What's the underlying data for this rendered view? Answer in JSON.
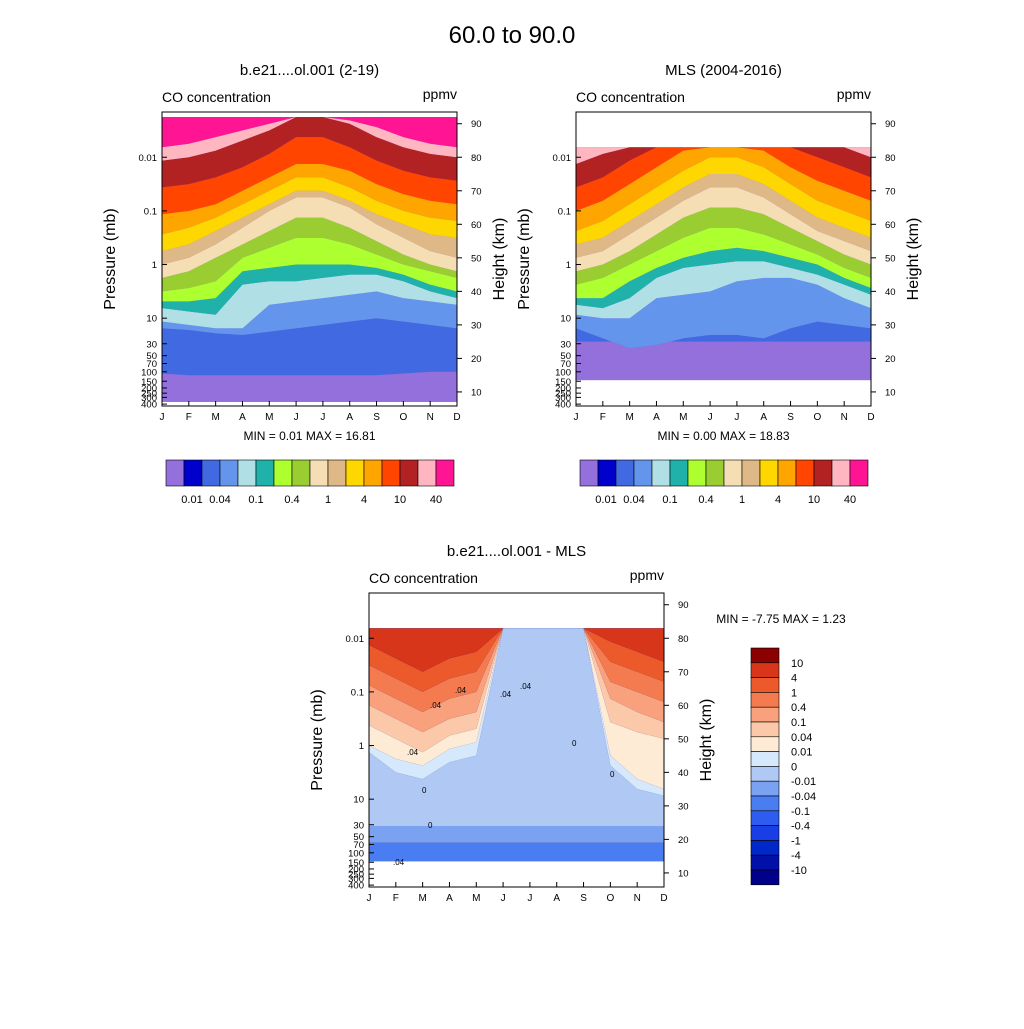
{
  "page_title": "60.0 to  90.0",
  "months": [
    "J",
    "F",
    "M",
    "A",
    "M",
    "J",
    "J",
    "A",
    "S",
    "O",
    "N",
    "D"
  ],
  "pressure_ticks": [
    "0.01",
    "0.1",
    "1",
    "10",
    "30",
    "50",
    "70",
    "100",
    "150",
    "200",
    "250",
    "300",
    "400"
  ],
  "pressure_values": [
    0.01,
    0.1,
    1,
    10,
    30,
    50,
    70,
    100,
    150,
    200,
    250,
    300,
    400
  ],
  "height_ticks": [
    "90",
    "80",
    "70",
    "60",
    "50",
    "40",
    "30",
    "20",
    "10"
  ],
  "height_values": [
    90,
    80,
    70,
    60,
    50,
    40,
    30,
    20,
    10
  ],
  "y_label_left": "Pressure (mb)",
  "y_label_right": "Height (km)",
  "variable_label": "CO concentration",
  "units_label": "ppmv",
  "co_levels": [
    0.01,
    0.02,
    0.04,
    0.07,
    0.1,
    0.2,
    0.4,
    0.7,
    1,
    2,
    4,
    7,
    10,
    20,
    40
  ],
  "co_colorbar_labels": [
    "0.01",
    "0.04",
    "0.1",
    "0.4",
    "1",
    "4",
    "10",
    "40"
  ],
  "co_colors": [
    "#9370db",
    "#0000cd",
    "#4169e1",
    "#6495ed",
    "#b0e0e6",
    "#20b2aa",
    "#adff2f",
    "#9acd32",
    "#f5deb3",
    "#deb887",
    "#ffd700",
    "#ffa500",
    "#ff4500",
    "#b22222",
    "#ffb6c1",
    "#ff1493"
  ],
  "diff_levels": [
    -10,
    -4,
    -1,
    -0.4,
    -0.1,
    -0.04,
    -0.01,
    0,
    0.01,
    0.04,
    0.1,
    0.4,
    1,
    4,
    10
  ],
  "diff_colorbar_labels": [
    "10",
    "4",
    "1",
    "0.4",
    "0.1",
    "0.04",
    "0.01",
    "0",
    "-0.01",
    "-0.04",
    "-0.1",
    "-0.4",
    "-1",
    "-4",
    "-10"
  ],
  "diff_colors": [
    "#00008b",
    "#0010a8",
    "#0028c8",
    "#1a3ee6",
    "#2e5cf0",
    "#4a7cf2",
    "#7ba2f0",
    "#b0c8f4",
    "#d6e8fc",
    "#fdebd6",
    "#fcc8aa",
    "#f9a07c",
    "#f47a4f",
    "#ec5a2c",
    "#d8361a",
    "#8b0000"
  ],
  "chart_data": [
    {
      "type": "heatmap",
      "title": "b.e21....ol.001 (2-19)",
      "subtitle_left": "CO concentration",
      "subtitle_right": "ppmv",
      "x": [
        "J",
        "F",
        "M",
        "A",
        "M",
        "J",
        "J",
        "A",
        "S",
        "O",
        "N",
        "D"
      ],
      "ylabel": "Pressure (mb)",
      "ylabel_right": "Height (km)",
      "ylim": [
        400,
        0.0032
      ],
      "y_scale": "log",
      "stats": "MIN =   0.01  MAX =  16.81",
      "min": 0.01,
      "max": 16.81,
      "data_top_km": 92,
      "data_bottom_km": 7,
      "layer_boundary_heights_km": [
        [
          15.5,
          15,
          15,
          15,
          15,
          15,
          15,
          15,
          15,
          15.5,
          16,
          16
        ],
        [
          15.5,
          15,
          15,
          15,
          15,
          15,
          15,
          15,
          15,
          15.5,
          16,
          16
        ],
        [
          29,
          28.5,
          27.5,
          27,
          28,
          29,
          30,
          31,
          32,
          31,
          30,
          29
        ],
        [
          31,
          30,
          29,
          29,
          36,
          37,
          38,
          39,
          40,
          38,
          37,
          36
        ],
        [
          35,
          34,
          33,
          42,
          43,
          43,
          44,
          45,
          45,
          43,
          40,
          38
        ],
        [
          37,
          37,
          38,
          46,
          47,
          48,
          48,
          48,
          47,
          45,
          42,
          40
        ],
        [
          40,
          41,
          43,
          50,
          53,
          56,
          56,
          54,
          51,
          48,
          46,
          44
        ],
        [
          44,
          46,
          50,
          54,
          58,
          62,
          62,
          59,
          55,
          51,
          48,
          46
        ],
        [
          48,
          50,
          54,
          59,
          64,
          68,
          68,
          65,
          60,
          56,
          52,
          50
        ],
        [
          52,
          54,
          58,
          62,
          66,
          70,
          70,
          67,
          63,
          60,
          57,
          56
        ],
        [
          57,
          59,
          62,
          66,
          70,
          74,
          74,
          71,
          67,
          64,
          62,
          61
        ],
        [
          63,
          64,
          66,
          70,
          74,
          78,
          78,
          76,
          72,
          69,
          67,
          66
        ],
        [
          71,
          72,
          74,
          77,
          81,
          86,
          86,
          83,
          79,
          76,
          74,
          73
        ],
        [
          79,
          80,
          82,
          85,
          88,
          92,
          92,
          90,
          86,
          83,
          81,
          80
        ],
        [
          83,
          84,
          86,
          88,
          90,
          92,
          92,
          91,
          89,
          86,
          84,
          83
        ]
      ]
    },
    {
      "type": "heatmap",
      "title": "MLS (2004-2016)",
      "subtitle_left": "CO concentration",
      "subtitle_right": "ppmv",
      "x": [
        "J",
        "F",
        "M",
        "A",
        "M",
        "J",
        "J",
        "A",
        "S",
        "O",
        "N",
        "D"
      ],
      "ylabel": "Pressure (mb)",
      "ylabel_right": "Height (km)",
      "ylim": [
        400,
        0.0032
      ],
      "y_scale": "log",
      "stats": "MIN =   0.00  MAX =  18.83",
      "min": 0.0,
      "max": 18.83,
      "data_top_km": 83,
      "data_bottom_km": 13.5,
      "layer_boundary_heights_km": [
        [
          25,
          25,
          25,
          25,
          25,
          25,
          25,
          25,
          25,
          25,
          25,
          25
        ],
        [
          25,
          25,
          25,
          25,
          25,
          25,
          25,
          25,
          25,
          25,
          25,
          25
        ],
        [
          29,
          26,
          23,
          24,
          26,
          27,
          27,
          26,
          29,
          31,
          30,
          29
        ],
        [
          33,
          32,
          32,
          38,
          39,
          40,
          43,
          44,
          44,
          42,
          38,
          35
        ],
        [
          36,
          35,
          38,
          44,
          47,
          48,
          49,
          49,
          47,
          45,
          42,
          39
        ],
        [
          38,
          38,
          43,
          47,
          50,
          52,
          53,
          52,
          50,
          48,
          44,
          41
        ],
        [
          42,
          44,
          48,
          52,
          56,
          59,
          59,
          57,
          54,
          51,
          47,
          44
        ],
        [
          46,
          48,
          52,
          57,
          62,
          65,
          65,
          63,
          59,
          55,
          51,
          48
        ],
        [
          50,
          52,
          57,
          62,
          67,
          71,
          71,
          68,
          63,
          58,
          55,
          52
        ],
        [
          54,
          56,
          61,
          66,
          71,
          75,
          75,
          72,
          67,
          62,
          59,
          56
        ],
        [
          58,
          61,
          66,
          71,
          76,
          80,
          80,
          77,
          72,
          67,
          64,
          61
        ],
        [
          64,
          67,
          72,
          77,
          82,
          86,
          86,
          82,
          77,
          73,
          70,
          67
        ],
        [
          71,
          74,
          79,
          84,
          88,
          92,
          92,
          88,
          84,
          80,
          77,
          74
        ],
        [
          78,
          81,
          86,
          90,
          92,
          92,
          92,
          92,
          90,
          87,
          83,
          80
        ],
        [
          86,
          88,
          92,
          92,
          92,
          92,
          92,
          92,
          92,
          92,
          90,
          87
        ]
      ]
    },
    {
      "type": "heatmap",
      "title": "b.e21....ol.001 - MLS",
      "subtitle_left": "CO concentration",
      "subtitle_right": "ppmv",
      "x": [
        "J",
        "F",
        "M",
        "A",
        "M",
        "J",
        "J",
        "A",
        "S",
        "O",
        "N",
        "D"
      ],
      "ylabel": "Pressure (mb)",
      "ylabel_right": "Height (km)",
      "ylim": [
        400,
        0.0032
      ],
      "y_scale": "log",
      "stats": "MIN =  -7.75  MAX =   1.23",
      "min": -7.75,
      "max": 1.23,
      "data_top_km": 83,
      "data_bottom_km": 13.5,
      "contour_labels": [
        ".04",
        ".04",
        ".04",
        ".04",
        ".04",
        "0",
        "0",
        "0",
        "0",
        ".04"
      ],
      "layer_boundary_heights_km": [
        [
          13.5,
          13.5,
          13.5,
          13.5,
          13.5,
          13.5,
          13.5,
          13.5,
          13.5,
          13.5,
          13.5,
          13.5
        ],
        [
          13.5,
          13.5,
          13.5,
          13.5,
          13.5,
          13.5,
          13.5,
          13.5,
          13.5,
          13.5,
          13.5,
          13.5
        ],
        [
          13.5,
          13.5,
          13.5,
          13.5,
          13.5,
          13.5,
          13.5,
          13.5,
          13.5,
          13.5,
          13.5,
          13.5
        ],
        [
          13.5,
          13.5,
          13.5,
          13.5,
          13.5,
          13.5,
          13.5,
          13.5,
          13.5,
          13.5,
          13.5,
          13.5
        ],
        [
          13.5,
          13.5,
          13.5,
          13.5,
          13.5,
          13.5,
          13.5,
          13.5,
          13.5,
          13.5,
          13.5,
          13.5
        ],
        [
          19,
          19,
          19,
          19,
          19,
          19,
          19,
          19,
          19,
          19,
          19,
          19
        ],
        [
          24,
          24,
          24,
          24,
          24,
          24,
          24,
          24,
          24,
          24,
          24,
          24
        ],
        [
          46,
          40,
          38,
          43,
          45,
          83,
          83,
          83,
          83,
          42,
          35,
          33
        ],
        [
          48,
          44,
          42,
          47,
          49,
          83,
          83,
          83,
          83,
          45,
          38,
          35
        ],
        [
          54,
          50,
          46,
          51,
          53,
          83,
          83,
          83,
          83,
          55,
          52,
          50
        ],
        [
          60,
          56,
          52,
          56,
          58,
          83,
          83,
          83,
          83,
          62,
          58,
          55
        ],
        [
          66,
          62,
          58,
          62,
          64,
          83,
          83,
          83,
          83,
          67,
          64,
          61
        ],
        [
          72,
          68,
          64,
          68,
          70,
          83,
          83,
          83,
          83,
          73,
          70,
          67
        ],
        [
          78,
          74,
          70,
          74,
          76,
          83,
          83,
          83,
          83,
          79,
          76,
          73
        ],
        [
          83,
          83,
          83,
          83,
          83,
          83,
          83,
          83,
          83,
          83,
          83,
          83
        ]
      ]
    }
  ]
}
